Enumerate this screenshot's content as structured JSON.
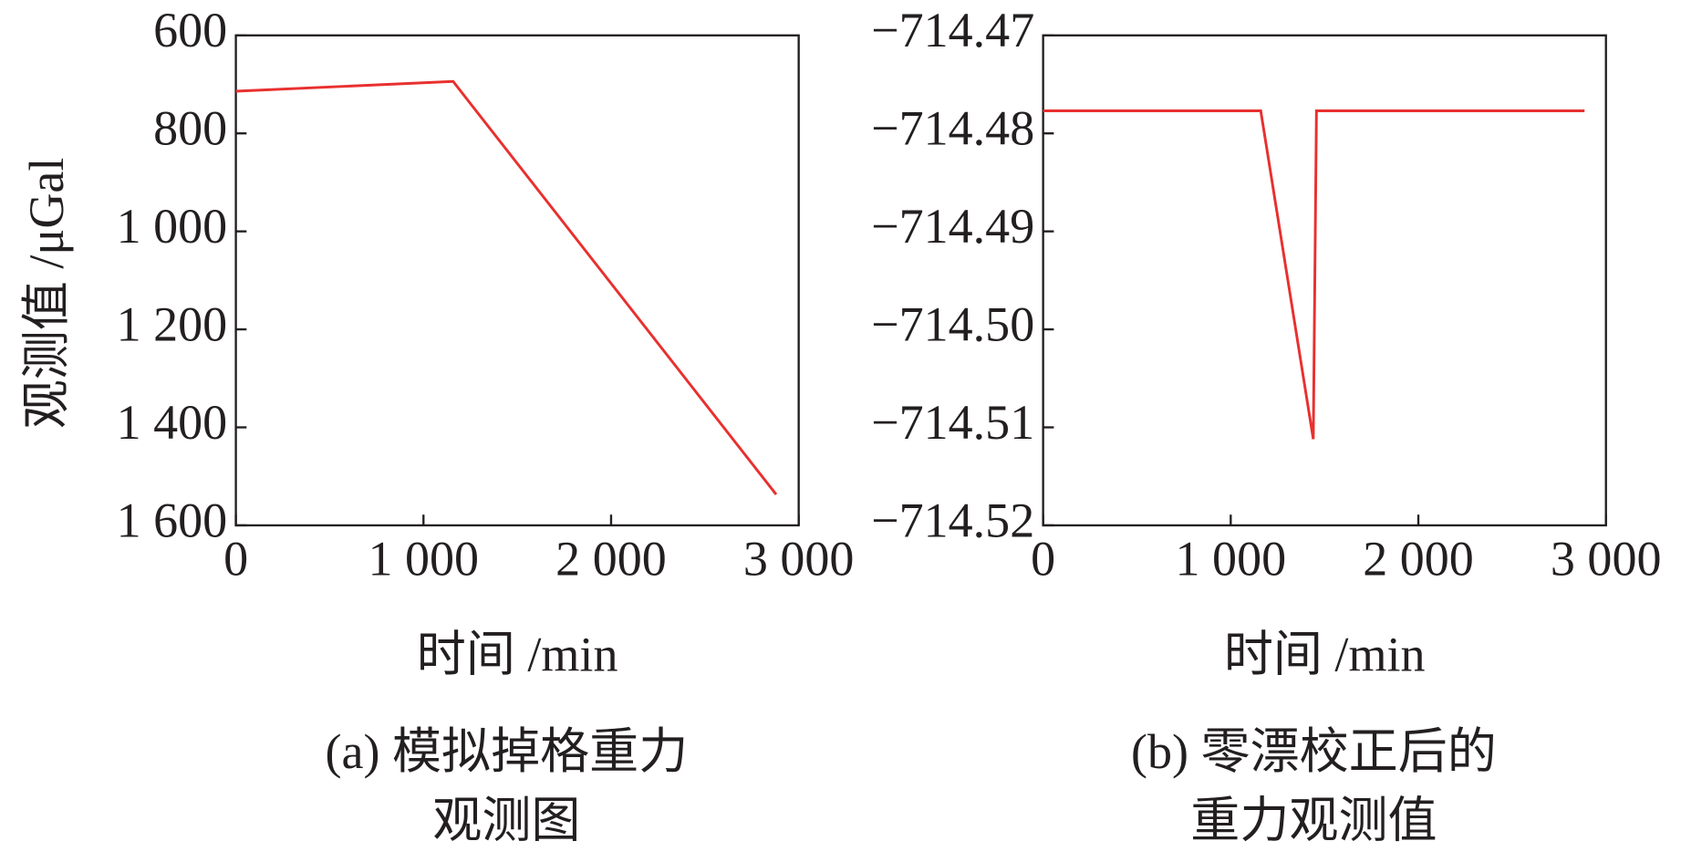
{
  "chart_data": [
    {
      "type": "line",
      "caption": [
        "(a) 模拟掉格重力",
        "观测图"
      ],
      "xlabel": "时间 /min",
      "ylabel": "观测值 /μGal",
      "x": [
        0,
        1158,
        2880
      ],
      "values": [
        714,
        694,
        1537
      ],
      "color": "#e8302f",
      "xlim": [
        0,
        3000
      ],
      "xticks": [
        0,
        {
          "value": 1000,
          "label": "1 000"
        },
        {
          "value": 2000,
          "label": "2 000"
        },
        {
          "value": 3000,
          "label": "3 000"
        }
      ],
      "ylim": [
        1600,
        600
      ],
      "yticks": [
        600,
        800,
        {
          "value": 1000,
          "label": "1 000"
        },
        {
          "value": 1200,
          "label": "1 200"
        },
        {
          "value": 1400,
          "label": "1 400"
        },
        {
          "value": 1600,
          "label": "1 600"
        }
      ]
    },
    {
      "type": "line",
      "caption": [
        "(b) 零漂校正后的",
        "重力观测值"
      ],
      "xlabel": "时间 /min",
      "x": [
        0,
        1160,
        1440,
        1457,
        2886
      ],
      "values": [
        -714.4777,
        -714.4777,
        -714.5112,
        -714.4777,
        -714.4777
      ],
      "color": "#e8302f",
      "xlim": [
        0,
        3000
      ],
      "xticks": [
        0,
        {
          "value": 1000,
          "label": "1 000"
        },
        {
          "value": 2000,
          "label": "2 000"
        },
        {
          "value": 3000,
          "label": "3 000"
        }
      ],
      "ylim": [
        -714.52,
        -714.47
      ],
      "yticks": [
        {
          "value": -714.47,
          "label": "−714.47"
        },
        {
          "value": -714.48,
          "label": "−714.48"
        },
        {
          "value": -714.49,
          "label": "−714.49"
        },
        {
          "value": -714.5,
          "label": "−714.50"
        },
        {
          "value": -714.51,
          "label": "−714.51"
        },
        {
          "value": -714.52,
          "label": "−714.52"
        }
      ]
    }
  ]
}
